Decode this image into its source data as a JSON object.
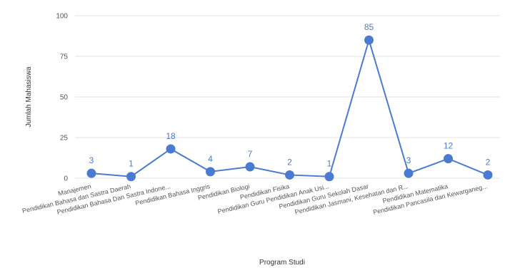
{
  "chart_data": {
    "type": "line",
    "title": "",
    "xlabel": "Program Studi",
    "ylabel": "Jumlah Mahasiswa",
    "ylim": [
      0,
      100
    ],
    "yticks": [
      0,
      25,
      50,
      75,
      100
    ],
    "grid": true,
    "color": "#4a7bd0",
    "categories": [
      "Manajemen",
      "Pendidikan Bahasa dan Sastra Daerah",
      "Pendidikan Bahasa Dan Sastra Indone...",
      "Pendidikan Bahasa Inggris",
      "Pendidikan Biologi",
      "Pendidikan Fisika",
      "Pendidikan Guru Pendidikan Anak Usi...",
      "Pendidikan Guru Sekolah Dasar",
      "Pendidikan Jasmani, Kesehatan dan R...",
      "Pendidikan Matematika",
      "Pendidikan Pancasila dan Kewarganeg..."
    ],
    "values": [
      3,
      1,
      18,
      4,
      7,
      2,
      1,
      85,
      3,
      12,
      2
    ]
  }
}
